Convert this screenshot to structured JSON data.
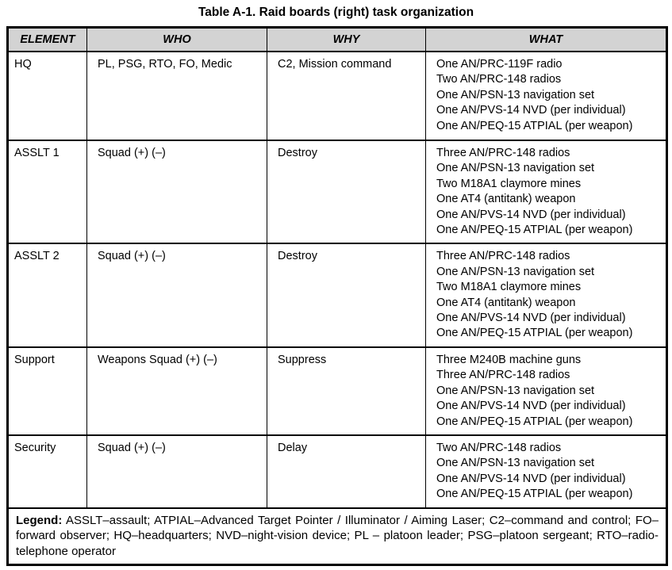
{
  "title": "Table A-1. Raid boards (right) task organization",
  "colors": {
    "header_bg": "#d3d3d3",
    "border": "#000000",
    "text": "#000000",
    "page_bg": "#ffffff"
  },
  "table": {
    "headers": [
      "ELEMENT",
      "WHO",
      "WHY",
      "WHAT"
    ],
    "rows": [
      {
        "element": "HQ",
        "who": "PL, PSG, RTO, FO, Medic",
        "why": "C2, Mission command",
        "what": [
          "One AN/PRC-119F radio",
          "Two AN/PRC-148 radios",
          "One AN/PSN-13 navigation set",
          "One AN/PVS-14 NVD (per individual)",
          "One AN/PEQ-15 ATPIAL (per weapon)"
        ]
      },
      {
        "element": "ASSLT 1",
        "who": "Squad (+) (–)",
        "why": "Destroy",
        "what": [
          "Three AN/PRC-148 radios",
          "One AN/PSN-13 navigation set",
          "Two M18A1 claymore mines",
          "One AT4 (antitank) weapon",
          "One AN/PVS-14 NVD (per individual)",
          "One AN/PEQ-15 ATPIAL (per weapon)"
        ]
      },
      {
        "element": "ASSLT 2",
        "who": "Squad (+) (–)",
        "why": "Destroy",
        "what": [
          "Three AN/PRC-148 radios",
          "One AN/PSN-13 navigation set",
          "Two M18A1 claymore mines",
          "One AT4 (antitank) weapon",
          "One AN/PVS-14 NVD (per individual)",
          "One AN/PEQ-15 ATPIAL (per weapon)"
        ]
      },
      {
        "element": "Support",
        "who": "Weapons Squad (+) (–)",
        "why": "Suppress",
        "what": [
          "Three M240B machine guns",
          "Three AN/PRC-148 radios",
          "One AN/PSN-13 navigation set",
          "One AN/PVS-14 NVD (per individual)",
          "One AN/PEQ-15 ATPIAL (per weapon)"
        ]
      },
      {
        "element": "Security",
        "who": "Squad (+) (–)",
        "why": "Delay",
        "what": [
          "Two AN/PRC-148 radios",
          "One AN/PSN-13 navigation set",
          "One AN/PVS-14 NVD (per individual)",
          "One AN/PEQ-15 ATPIAL (per weapon)"
        ]
      }
    ],
    "legend_label": "Legend:",
    "legend_text": "ASSLT–assault; ATPIAL–Advanced Target Pointer / Illuminator / Aiming Laser; C2–command and control; FO–forward observer; HQ–headquarters; NVD–night-vision device; PL – platoon leader; PSG–platoon sergeant; RTO–radio-telephone operator"
  }
}
